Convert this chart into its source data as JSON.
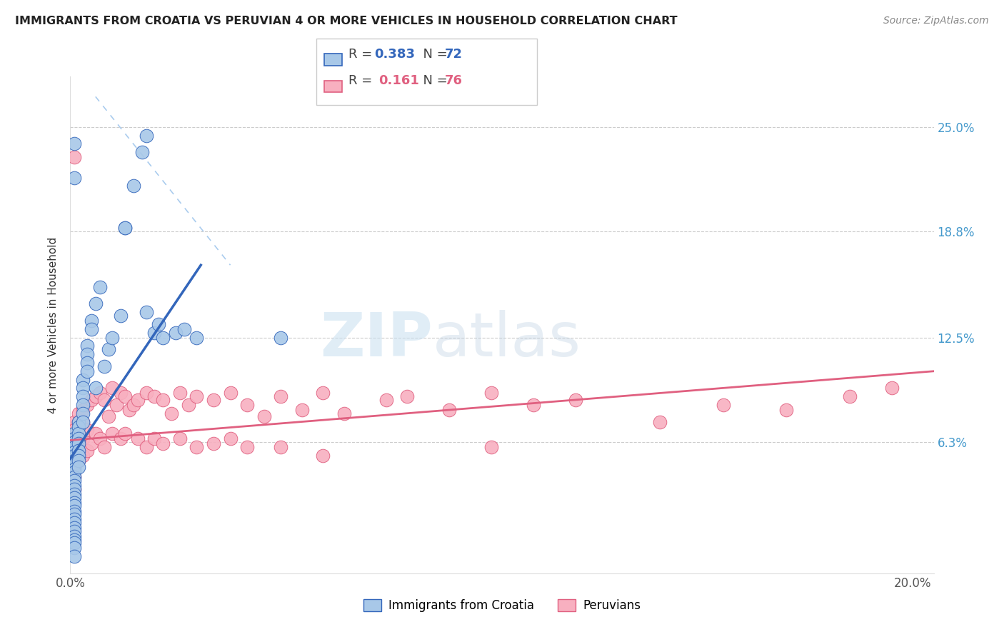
{
  "title": "IMMIGRANTS FROM CROATIA VS PERUVIAN 4 OR MORE VEHICLES IN HOUSEHOLD CORRELATION CHART",
  "source": "Source: ZipAtlas.com",
  "ylabel": "4 or more Vehicles in Household",
  "xlim": [
    0.0,
    0.205
  ],
  "ylim": [
    -0.015,
    0.28
  ],
  "ytick_values": [
    0.063,
    0.125,
    0.188,
    0.25
  ],
  "ytick_labels": [
    "6.3%",
    "12.5%",
    "18.8%",
    "25.0%"
  ],
  "legend_label1": "Immigrants from Croatia",
  "legend_label2": "Peruvians",
  "color_blue": "#a8c8e8",
  "color_pink": "#f8b0c0",
  "line_blue": "#3366bb",
  "line_pink": "#e06080",
  "cro_line": [
    [
      0.0,
      0.053
    ],
    [
      0.031,
      0.168
    ]
  ],
  "peru_line": [
    [
      0.0,
      0.064
    ],
    [
      0.205,
      0.105
    ]
  ],
  "dash_line": [
    [
      0.006,
      0.268
    ],
    [
      0.038,
      0.168
    ]
  ],
  "croatia_x": [
    0.001,
    0.001,
    0.001,
    0.001,
    0.001,
    0.001,
    0.001,
    0.001,
    0.001,
    0.001,
    0.001,
    0.001,
    0.001,
    0.001,
    0.001,
    0.001,
    0.001,
    0.001,
    0.001,
    0.001,
    0.001,
    0.001,
    0.001,
    0.001,
    0.001,
    0.001,
    0.001,
    0.001,
    0.001,
    0.002,
    0.002,
    0.002,
    0.002,
    0.002,
    0.002,
    0.002,
    0.002,
    0.002,
    0.003,
    0.003,
    0.003,
    0.003,
    0.003,
    0.003,
    0.004,
    0.004,
    0.004,
    0.004,
    0.005,
    0.005,
    0.006,
    0.006,
    0.007,
    0.008,
    0.009,
    0.01,
    0.012,
    0.013,
    0.013,
    0.015,
    0.017,
    0.018,
    0.018,
    0.02,
    0.021,
    0.022,
    0.025,
    0.027,
    0.03,
    0.05,
    0.001,
    0.001
  ],
  "croatia_y": [
    0.068,
    0.065,
    0.063,
    0.06,
    0.057,
    0.055,
    0.052,
    0.05,
    0.047,
    0.045,
    0.042,
    0.04,
    0.037,
    0.035,
    0.032,
    0.03,
    0.027,
    0.025,
    0.022,
    0.02,
    0.017,
    0.015,
    0.012,
    0.01,
    0.007,
    0.005,
    0.003,
    0.0,
    -0.005,
    0.075,
    0.072,
    0.068,
    0.065,
    0.062,
    0.058,
    0.055,
    0.052,
    0.048,
    0.1,
    0.095,
    0.09,
    0.085,
    0.08,
    0.075,
    0.12,
    0.115,
    0.11,
    0.105,
    0.135,
    0.13,
    0.145,
    0.095,
    0.155,
    0.108,
    0.118,
    0.125,
    0.138,
    0.19,
    0.19,
    0.215,
    0.235,
    0.245,
    0.14,
    0.128,
    0.133,
    0.125,
    0.128,
    0.13,
    0.125,
    0.125,
    0.24,
    0.22
  ],
  "peru_x": [
    0.001,
    0.001,
    0.001,
    0.001,
    0.001,
    0.001,
    0.001,
    0.001,
    0.002,
    0.002,
    0.002,
    0.002,
    0.002,
    0.003,
    0.003,
    0.003,
    0.003,
    0.004,
    0.004,
    0.004,
    0.005,
    0.005,
    0.006,
    0.006,
    0.007,
    0.007,
    0.008,
    0.008,
    0.009,
    0.01,
    0.01,
    0.011,
    0.012,
    0.012,
    0.013,
    0.013,
    0.014,
    0.015,
    0.016,
    0.016,
    0.018,
    0.018,
    0.02,
    0.02,
    0.022,
    0.022,
    0.024,
    0.026,
    0.026,
    0.028,
    0.03,
    0.03,
    0.034,
    0.034,
    0.038,
    0.038,
    0.042,
    0.042,
    0.046,
    0.05,
    0.05,
    0.055,
    0.06,
    0.06,
    0.065,
    0.075,
    0.08,
    0.09,
    0.1,
    0.1,
    0.11,
    0.12,
    0.14,
    0.155,
    0.17,
    0.185,
    0.195,
    0.001
  ],
  "peru_y": [
    0.075,
    0.07,
    0.065,
    0.06,
    0.055,
    0.048,
    0.042,
    0.035,
    0.08,
    0.075,
    0.068,
    0.06,
    0.052,
    0.082,
    0.075,
    0.065,
    0.055,
    0.085,
    0.07,
    0.058,
    0.088,
    0.062,
    0.09,
    0.068,
    0.092,
    0.065,
    0.088,
    0.06,
    0.078,
    0.095,
    0.068,
    0.085,
    0.092,
    0.065,
    0.09,
    0.068,
    0.082,
    0.085,
    0.088,
    0.065,
    0.092,
    0.06,
    0.09,
    0.065,
    0.088,
    0.062,
    0.08,
    0.092,
    0.065,
    0.085,
    0.09,
    0.06,
    0.088,
    0.062,
    0.092,
    0.065,
    0.085,
    0.06,
    0.078,
    0.09,
    0.06,
    0.082,
    0.092,
    0.055,
    0.08,
    0.088,
    0.09,
    0.082,
    0.092,
    0.06,
    0.085,
    0.088,
    0.075,
    0.085,
    0.082,
    0.09,
    0.095,
    0.232
  ]
}
